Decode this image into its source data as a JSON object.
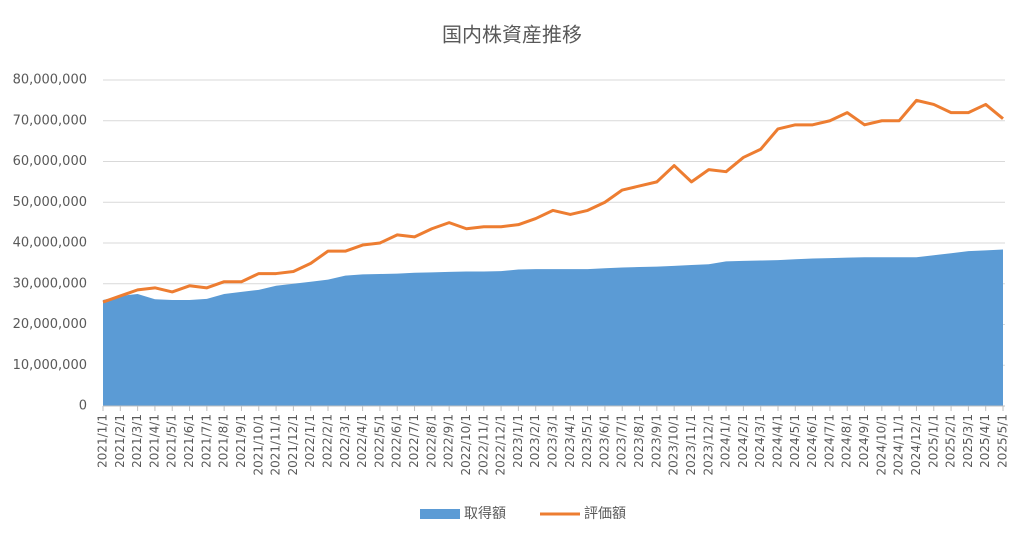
{
  "chart_data": {
    "type": "area_line",
    "title": "国内株資産推移",
    "categories": [
      "2021/1/1",
      "2021/2/1",
      "2021/3/1",
      "2021/4/1",
      "2021/5/1",
      "2021/6/1",
      "2021/7/1",
      "2021/8/1",
      "2021/9/1",
      "2021/10/1",
      "2021/11/1",
      "2021/12/1",
      "2022/1/1",
      "2022/2/1",
      "2022/3/1",
      "2022/4/1",
      "2022/5/1",
      "2022/6/1",
      "2022/7/1",
      "2022/8/1",
      "2022/9/1",
      "2022/10/1",
      "2022/11/1",
      "2022/12/1",
      "2023/1/1",
      "2023/2/1",
      "2023/3/1",
      "2023/4/1",
      "2023/5/1",
      "2023/6/1",
      "2023/7/1",
      "2023/8/1",
      "2023/9/1",
      "2023/10/1",
      "2023/11/1",
      "2023/12/1",
      "2024/1/1",
      "2024/2/1",
      "2024/3/1",
      "2024/4/1",
      "2024/5/1",
      "2024/6/1",
      "2024/7/1",
      "2024/8/1",
      "2024/9/1",
      "2024/10/1",
      "2024/11/1",
      "2024/12/1",
      "2025/1/1",
      "2025/2/1",
      "2025/3/1",
      "2025/4/1",
      "2025/5/1"
    ],
    "series": [
      {
        "name": "取得額",
        "type": "area",
        "color": "#5b9bd5",
        "values": [
          26000000,
          27000000,
          27500000,
          26200000,
          26000000,
          26000000,
          26300000,
          27500000,
          28000000,
          28500000,
          29500000,
          30000000,
          30500000,
          31000000,
          32000000,
          32300000,
          32400000,
          32500000,
          32700000,
          32800000,
          32900000,
          33000000,
          33000000,
          33100000,
          33500000,
          33600000,
          33600000,
          33600000,
          33600000,
          33800000,
          34000000,
          34100000,
          34200000,
          34400000,
          34600000,
          34800000,
          35500000,
          35600000,
          35700000,
          35800000,
          36000000,
          36200000,
          36300000,
          36400000,
          36500000,
          36500000,
          36500000,
          36500000,
          37000000,
          37500000,
          38000000,
          38200000,
          38400000
        ]
      },
      {
        "name": "評価額",
        "type": "line",
        "color": "#ed7d31",
        "values": [
          25500000,
          27000000,
          28500000,
          29000000,
          28000000,
          29500000,
          29000000,
          30500000,
          30500000,
          32500000,
          32500000,
          33000000,
          35000000,
          38000000,
          38000000,
          39500000,
          40000000,
          42000000,
          41500000,
          43500000,
          45000000,
          43500000,
          44000000,
          44000000,
          44500000,
          46000000,
          48000000,
          47000000,
          48000000,
          50000000,
          53000000,
          54000000,
          55000000,
          59000000,
          55000000,
          58000000,
          57500000,
          61000000,
          63000000,
          68000000,
          69000000,
          69000000,
          70000000,
          72000000,
          69000000,
          70000000,
          70000000,
          75000000,
          74000000,
          72000000,
          72000000,
          74000000,
          70500000
        ]
      }
    ],
    "ylim": [
      0,
      80000000
    ],
    "yticks": [
      0,
      {
        "value": 10000000,
        "label": "10,000,000"
      },
      {
        "value": 20000000,
        "label": "20,000,000"
      },
      {
        "value": 30000000,
        "label": "30,000,000"
      },
      {
        "value": 40000000,
        "label": "40,000,000"
      },
      {
        "value": 50000000,
        "label": "50,000,000"
      },
      {
        "value": 60000000,
        "label": "60,000,000"
      },
      {
        "value": 70000000,
        "label": "70,000,000"
      },
      {
        "value": 80000000,
        "label": "80,000,000"
      }
    ],
    "grid": true,
    "legend": "bottom"
  }
}
